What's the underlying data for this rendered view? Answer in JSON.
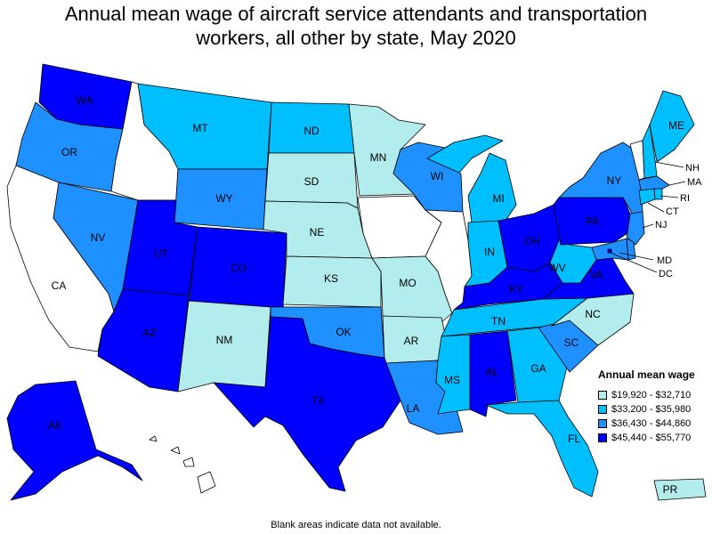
{
  "title_line1": "Annual mean wage of aircraft service attendants and transportation",
  "title_line2": "workers, all other by state, May 2020",
  "legend": {
    "title": "Annual mean wage",
    "items": [
      {
        "label": "$19,920 - $32,710",
        "color": "#b3ecec"
      },
      {
        "label": "$33,200 - $35,980",
        "color": "#00bfff"
      },
      {
        "label": "$36,430 - $44,860",
        "color": "#1e90ff"
      },
      {
        "label": "$45,440 - $55,770",
        "color": "#0000ff"
      }
    ]
  },
  "no_data_color": "#ffffff",
  "footnote": "Blank areas indicate data not available.",
  "states": {
    "WA": 3,
    "OR": 2,
    "CA": null,
    "NV": 2,
    "ID": null,
    "MT": 1,
    "WY": 2,
    "UT": 3,
    "AZ": 3,
    "CO": 3,
    "NM": 0,
    "ND": 1,
    "SD": 0,
    "NE": 0,
    "KS": 0,
    "OK": 2,
    "TX": 3,
    "MN": 0,
    "IA": null,
    "MO": 0,
    "AR": 0,
    "LA": 2,
    "WI": 2,
    "IL": null,
    "MI": 1,
    "IN": 1,
    "OH": 3,
    "KY": 3,
    "TN": 1,
    "MS": 1,
    "AL": 3,
    "GA": 1,
    "FL": 1,
    "SC": 2,
    "NC": 0,
    "VA": 3,
    "WV": 1,
    "PA": 3,
    "NY": 2,
    "VT": null,
    "NH": 1,
    "ME": 1,
    "MA": 2,
    "RI": 1,
    "CT": 1,
    "NJ": 2,
    "DE": 2,
    "MD": 2,
    "DC": 3,
    "AK": 3,
    "HI": null,
    "PR": 0
  },
  "labels": [
    "WA",
    "OR",
    "MT",
    "ND",
    "MN",
    "SD",
    "WY",
    "WI",
    "NY",
    "MI",
    "ME",
    "NE",
    "NV",
    "UT",
    "CO",
    "KS",
    "IN",
    "OH",
    "PA",
    "MO",
    "KY",
    "WV",
    "VA",
    "CA",
    "NM",
    "OK",
    "TN",
    "NC",
    "AR",
    "SC",
    "AZ",
    "AL",
    "GA",
    "MS",
    "TX",
    "LA",
    "AK",
    "FL",
    "PR"
  ],
  "callouts": [
    "NH",
    "MA",
    "RI",
    "CT",
    "NJ",
    "MD",
    "DC"
  ]
}
